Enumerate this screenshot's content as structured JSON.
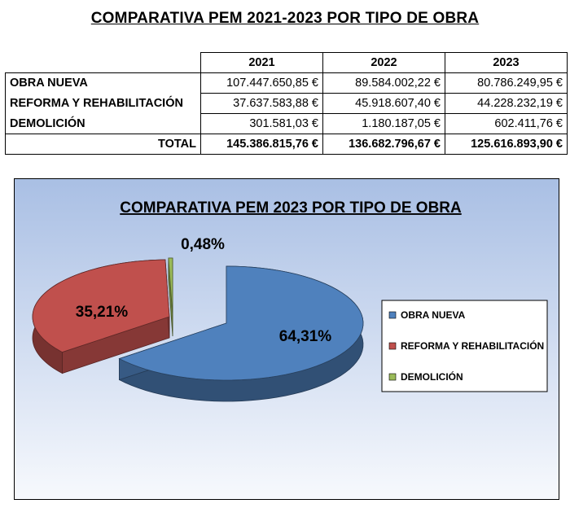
{
  "title": "COMPARATIVA PEM 2021-2023 POR TIPO DE OBRA",
  "table": {
    "years": [
      "2021",
      "2022",
      "2023"
    ],
    "rows": [
      {
        "label": "OBRA NUEVA",
        "values": [
          "107.447.650,85 €",
          "89.584.002,22 €",
          "80.786.249,95 €"
        ]
      },
      {
        "label": "REFORMA Y REHABILITACIÓN",
        "values": [
          "37.637.583,88 €",
          "45.918.607,40 €",
          "44.228.232,19 €"
        ]
      },
      {
        "label": "DEMOLICIÓN",
        "values": [
          "301.581,03 €",
          "1.180.187,05 €",
          "602.411,76 €"
        ]
      }
    ],
    "total": {
      "label": "TOTAL",
      "values": [
        "145.386.815,76 €",
        "136.682.796,67 €",
        "125.616.893,90 €"
      ]
    }
  },
  "chart_data": {
    "type": "pie",
    "title": "COMPARATIVA PEM 2023 POR TIPO DE OBRA",
    "labels": [
      "OBRA NUEVA",
      "REFORMA Y REHABILITACIÓN",
      "DEMOLICIÓN"
    ],
    "values": [
      64.31,
      35.21,
      0.48
    ],
    "value_labels": [
      "64,31%",
      "35,21%",
      "0,48%"
    ],
    "colors": [
      "#4f81bd",
      "#c0504d",
      "#9bbb59"
    ],
    "three_d": true,
    "exploded": true,
    "legend": "right"
  }
}
